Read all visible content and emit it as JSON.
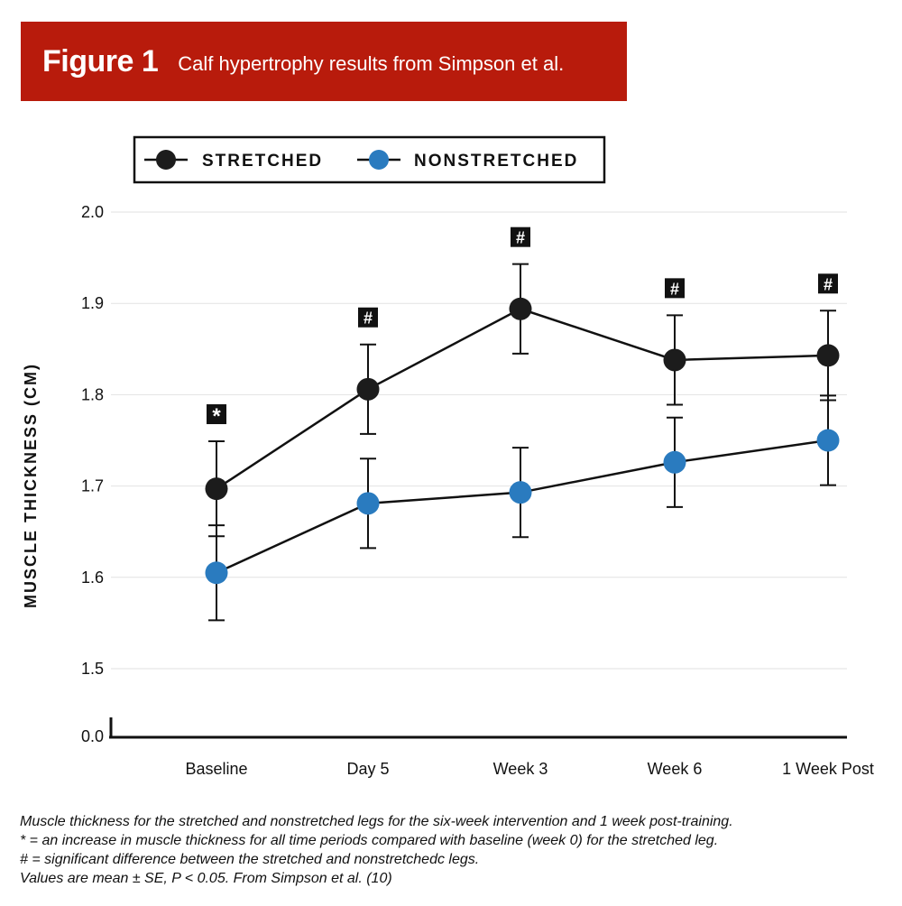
{
  "figure": {
    "label": "Figure 1",
    "title": "Calf hypertrophy results from Simpson et al.",
    "banner_color": "#b81b0c"
  },
  "chart_data": {
    "type": "line",
    "categories": [
      "Baseline",
      "Day 5",
      "Week 3",
      "Week 6",
      "1 Week Post"
    ],
    "ylabel": "MUSCLE THICKNESS (CM)",
    "xlabel": "",
    "yticks": [
      "0.0",
      "1.5",
      "1.6",
      "1.7",
      "1.8",
      "1.9",
      "2.0"
    ],
    "ylim": [
      1.5,
      2.0
    ],
    "axis_break": true,
    "legend_position": "top",
    "series": [
      {
        "name": "STRETCHED",
        "color": "#1c1c1c",
        "values": [
          1.697,
          1.806,
          1.894,
          1.838,
          1.843
        ],
        "error": [
          0.052,
          0.049,
          0.049,
          0.049,
          0.049
        ],
        "markers": [
          "*",
          "#",
          "#",
          "#",
          "#"
        ]
      },
      {
        "name": "NONSTRETCHED",
        "color": "#2a7bbf",
        "values": [
          1.605,
          1.681,
          1.693,
          1.726,
          1.75
        ],
        "error": [
          0.052,
          0.049,
          0.049,
          0.049,
          0.049
        ]
      }
    ]
  },
  "notes": [
    "Muscle thickness for the stretched and nonstretched legs for the six-week intervention and 1 week post-training.",
    "* = an increase in muscle thickness for all time periods compared with baseline (week 0) for the stretched leg.",
    "# = significant difference between the stretched and nonstretchedc legs.",
    "Values are mean ± SE, P < 0.05. From Simpson et al. (10)"
  ]
}
